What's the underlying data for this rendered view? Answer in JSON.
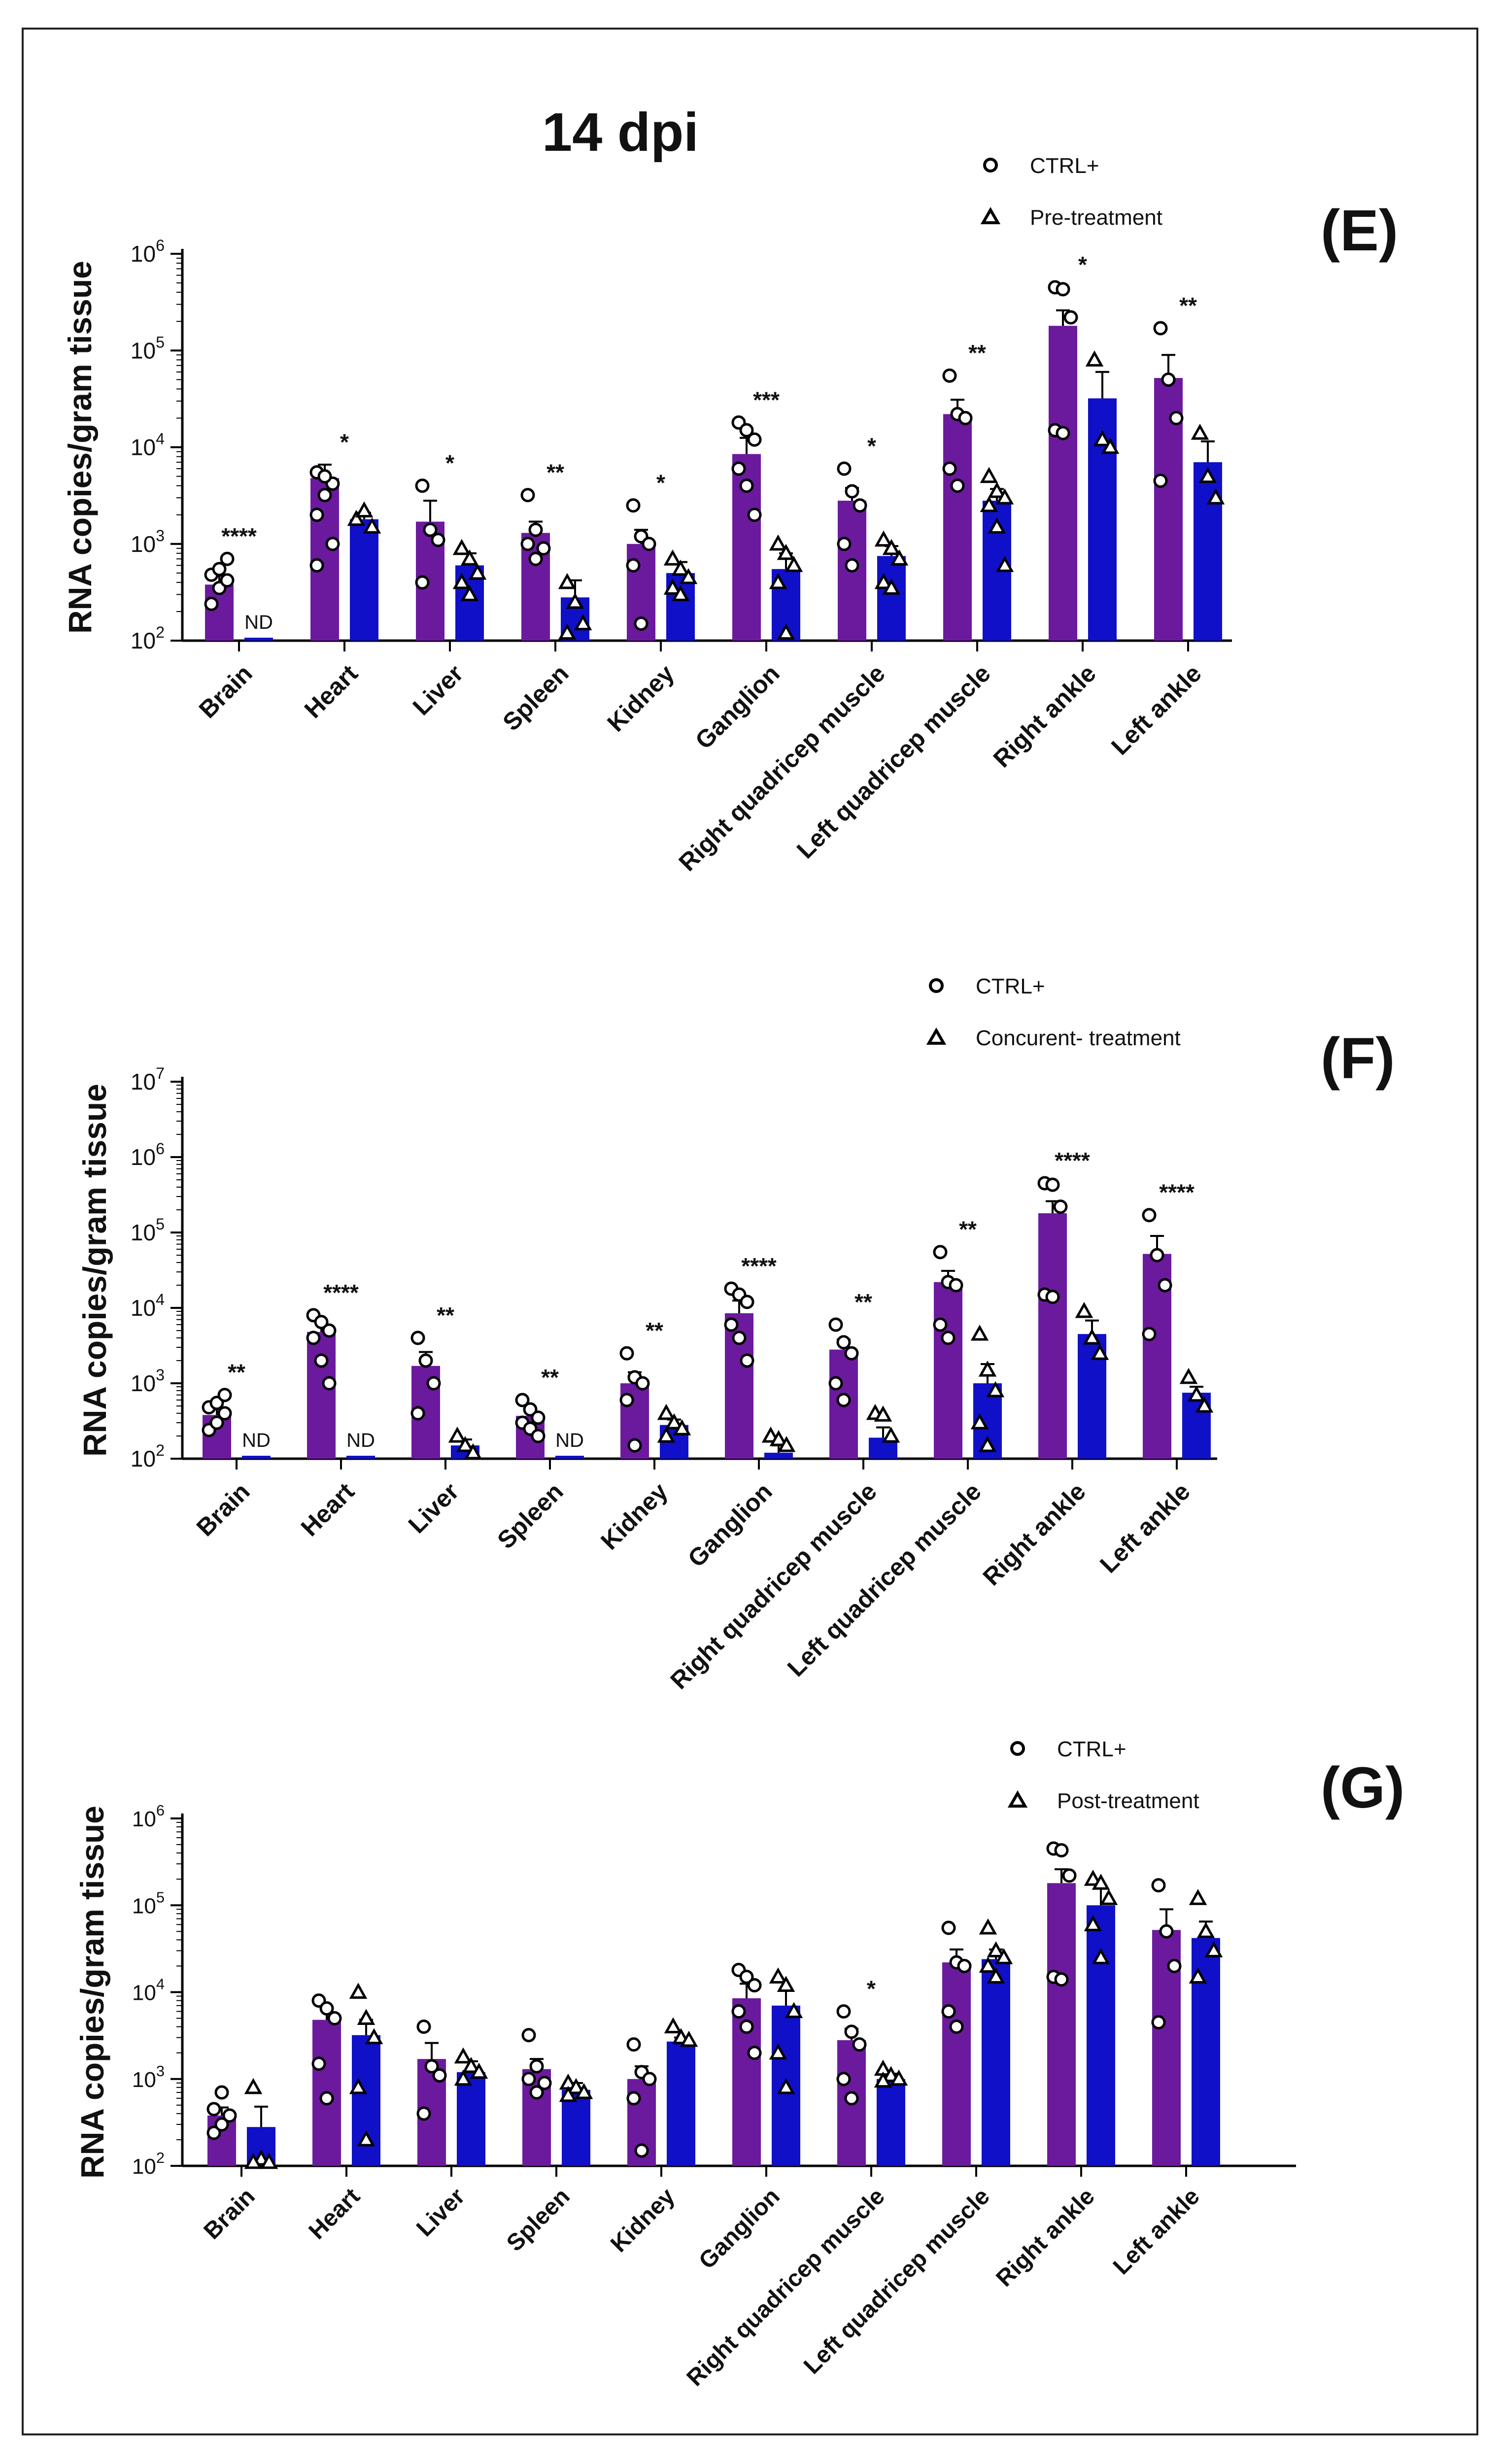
{
  "figure": {
    "title": "14 dpi",
    "panel_labels": [
      "(E)",
      "(F)",
      "(G)"
    ]
  },
  "colors": {
    "ctrl": "#6b1a9e",
    "treat": "#1010c8",
    "axis": "#000000"
  },
  "chart_data": [
    {
      "type": "bar",
      "panel": "(E)",
      "ylabel": "RNA copies/gram tissue",
      "yscale": "log",
      "ylim": [
        100,
        1000000
      ],
      "yticks": [
        "10^2",
        "10^3",
        "10^4",
        "10^5",
        "10^6"
      ],
      "categories": [
        "Brain",
        "Heart",
        "Liver",
        "Spleen",
        "Kidney",
        "Ganglion",
        "Right quadricep muscle",
        "Left quadricep muscle",
        "Right ankle",
        "Left ankle"
      ],
      "legend": [
        "CTRL+",
        "Pre-treatment"
      ],
      "series": [
        {
          "name": "CTRL+",
          "marker": "circle",
          "values": [
            380,
            4800,
            1700,
            1300,
            1000,
            8500,
            2800,
            22000,
            180000,
            52000
          ],
          "errors": [
            470,
            6600,
            2800,
            1700,
            1400,
            12500,
            3800,
            31000,
            260000,
            90000
          ]
        },
        {
          "name": "Pre-treatment",
          "marker": "triangle",
          "values": [
            108,
            1800,
            600,
            280,
            500,
            550,
            750,
            2800,
            32000,
            7000
          ],
          "errors": [
            null,
            2100,
            800,
            420,
            650,
            800,
            950,
            3700,
            60000,
            11500
          ]
        }
      ],
      "points": [
        [
          [
            240,
            350,
            420,
            480,
            550,
            700
          ],
          [
            2000,
            3200,
            4200,
            5500,
            5000,
            1000,
            600
          ],
          [
            4000,
            1400,
            1100,
            400
          ],
          [
            3200,
            1400,
            900,
            1000,
            700
          ],
          [
            2500,
            1200,
            1000,
            600,
            150
          ],
          [
            18000,
            15000,
            12000,
            6000,
            4000,
            2000
          ],
          [
            6000,
            3500,
            2500,
            1000,
            600
          ],
          [
            55000,
            22000,
            20000,
            6000,
            4000
          ],
          [
            450000,
            430000,
            220000,
            15000,
            14000
          ],
          [
            170000,
            50000,
            20000,
            4500
          ]
        ],
        [
          [],
          [
            1800,
            2200,
            1500
          ],
          [
            900,
            700,
            500,
            400,
            300
          ],
          [
            400,
            250,
            150,
            120
          ],
          [
            700,
            550,
            450,
            350,
            300
          ],
          [
            1000,
            800,
            600,
            400,
            120
          ],
          [
            1100,
            900,
            700,
            400,
            350
          ],
          [
            5000,
            3500,
            3000,
            2500,
            1500,
            600
          ],
          [
            80000,
            12000,
            10000
          ],
          [
            14000,
            5000,
            3000
          ]
        ]
      ],
      "significance": [
        "****",
        "*",
        "*",
        "**",
        "*",
        "***",
        "*",
        "**",
        "*",
        "**"
      ],
      "nd": [
        "ND",
        "",
        "",
        "",
        "",
        "",
        "",
        "",
        "",
        ""
      ]
    },
    {
      "type": "bar",
      "panel": "(F)",
      "ylabel": "RNA copies/gram tissue",
      "yscale": "log",
      "ylim": [
        100,
        10000000
      ],
      "yticks": [
        "10^2",
        "10^3",
        "10^4",
        "10^5",
        "10^6",
        "10^7"
      ],
      "categories": [
        "Brain",
        "Heart",
        "Liver",
        "Spleen",
        "Kidney",
        "Ganglion",
        "Right quadricep muscle",
        "Left quadricep muscle",
        "Right ankle",
        "Left ankle"
      ],
      "legend": [
        "CTRL+",
        "Concurent- treatment"
      ],
      "series": [
        {
          "name": "CTRL+",
          "marker": "circle",
          "values": [
            380,
            4800,
            1700,
            370,
            1000,
            8500,
            2800,
            22000,
            180000,
            52000
          ],
          "errors": [
            470,
            6700,
            2600,
            460,
            1400,
            12500,
            3800,
            31000,
            260000,
            90000
          ]
        },
        {
          "name": "Concurent- treatment",
          "marker": "triangle",
          "values": [
            108,
            108,
            150,
            108,
            280,
            120,
            190,
            1000,
            4500,
            750
          ],
          "errors": [
            null,
            null,
            180,
            null,
            330,
            150,
            260,
            1800,
            6800,
            900
          ]
        }
      ],
      "points": [
        [
          [
            240,
            300,
            400,
            480,
            550,
            700
          ],
          [
            8000,
            6500,
            5000,
            4000,
            2000,
            1000
          ],
          [
            4000,
            2000,
            1000,
            400
          ],
          [
            600,
            450,
            350,
            300,
            250,
            200
          ],
          [
            2500,
            1200,
            1000,
            600,
            150
          ],
          [
            18000,
            15000,
            12000,
            6000,
            4000,
            2000
          ],
          [
            6000,
            3500,
            2500,
            1000,
            600
          ],
          [
            55000,
            22000,
            20000,
            6000,
            4000
          ],
          [
            450000,
            430000,
            220000,
            15000,
            14000
          ],
          [
            170000,
            50000,
            20000,
            4500
          ]
        ],
        [
          [],
          [],
          [
            200,
            150,
            120
          ],
          [],
          [
            400,
            300,
            250,
            200
          ],
          [
            200,
            180,
            150
          ],
          [
            400,
            380,
            200
          ],
          [
            4500,
            1500,
            800,
            300,
            150
          ],
          [
            9000,
            4000,
            2500
          ],
          [
            1200,
            700,
            500
          ]
        ]
      ],
      "significance": [
        "**",
        "****",
        "**",
        "**",
        "**",
        "****",
        "**",
        "**",
        "****",
        "****"
      ],
      "nd": [
        "ND",
        "ND",
        "",
        "ND",
        "",
        "",
        "",
        "",
        "",
        ""
      ]
    },
    {
      "type": "bar",
      "panel": "(G)",
      "ylabel": "RNA copies/gram tissue",
      "yscale": "log",
      "ylim": [
        100,
        1000000
      ],
      "yticks": [
        "10^2",
        "10^3",
        "10^4",
        "10^5",
        "10^6"
      ],
      "categories": [
        "Brain",
        "Heart",
        "Liver",
        "Spleen",
        "Kidney",
        "Ganglion",
        "Right quadricep muscle",
        "Left quadricep muscle",
        "Right ankle",
        "Left ankle"
      ],
      "legend": [
        "CTRL+",
        "Post-treatment"
      ],
      "series": [
        {
          "name": "CTRL+",
          "marker": "circle",
          "values": [
            380,
            4800,
            1700,
            1300,
            1000,
            8500,
            2800,
            22000,
            180000,
            52000
          ],
          "errors": [
            470,
            6700,
            2600,
            1700,
            1400,
            12500,
            3800,
            31000,
            260000,
            90000
          ]
        },
        {
          "name": "Post-treatment",
          "marker": "triangle",
          "values": [
            280,
            3200,
            1200,
            750,
            2700,
            7000,
            1000,
            24000,
            100000,
            42000
          ],
          "errors": [
            480,
            4800,
            1600,
            900,
            3000,
            11000,
            1150,
            31000,
            160000,
            65000
          ]
        }
      ],
      "points": [
        [
          [
            240,
            300,
            380,
            450,
            700
          ],
          [
            8000,
            6500,
            5000,
            1500,
            600
          ],
          [
            4000,
            1400,
            1100,
            400
          ],
          [
            3200,
            1400,
            900,
            1000,
            700
          ],
          [
            2500,
            1200,
            1000,
            600,
            150
          ],
          [
            18000,
            15000,
            12000,
            6000,
            4000,
            2000
          ],
          [
            6000,
            3500,
            2500,
            1000,
            600
          ],
          [
            55000,
            22000,
            20000,
            6000,
            4000
          ],
          [
            450000,
            430000,
            220000,
            15000,
            14000
          ],
          [
            170000,
            50000,
            20000,
            4500
          ]
        ],
        [
          [
            800,
            120,
            110,
            110
          ],
          [
            10000,
            5000,
            3000,
            800,
            200
          ],
          [
            1800,
            1400,
            1200,
            1000
          ],
          [
            900,
            800,
            700,
            650
          ],
          [
            4000,
            3000,
            2800
          ],
          [
            15000,
            12000,
            6000,
            2000,
            800
          ],
          [
            1300,
            1100,
            1000,
            950
          ],
          [
            55000,
            30000,
            25000,
            20000,
            15000
          ],
          [
            200000,
            180000,
            120000,
            60000,
            25000
          ],
          [
            120000,
            50000,
            30000,
            15000
          ]
        ]
      ],
      "significance": [
        "",
        "",
        "",
        "",
        "",
        "",
        "*",
        "",
        "",
        ""
      ],
      "nd": [
        "",
        "",
        "",
        "",
        "",
        "",
        "",
        "",
        "",
        ""
      ]
    }
  ]
}
